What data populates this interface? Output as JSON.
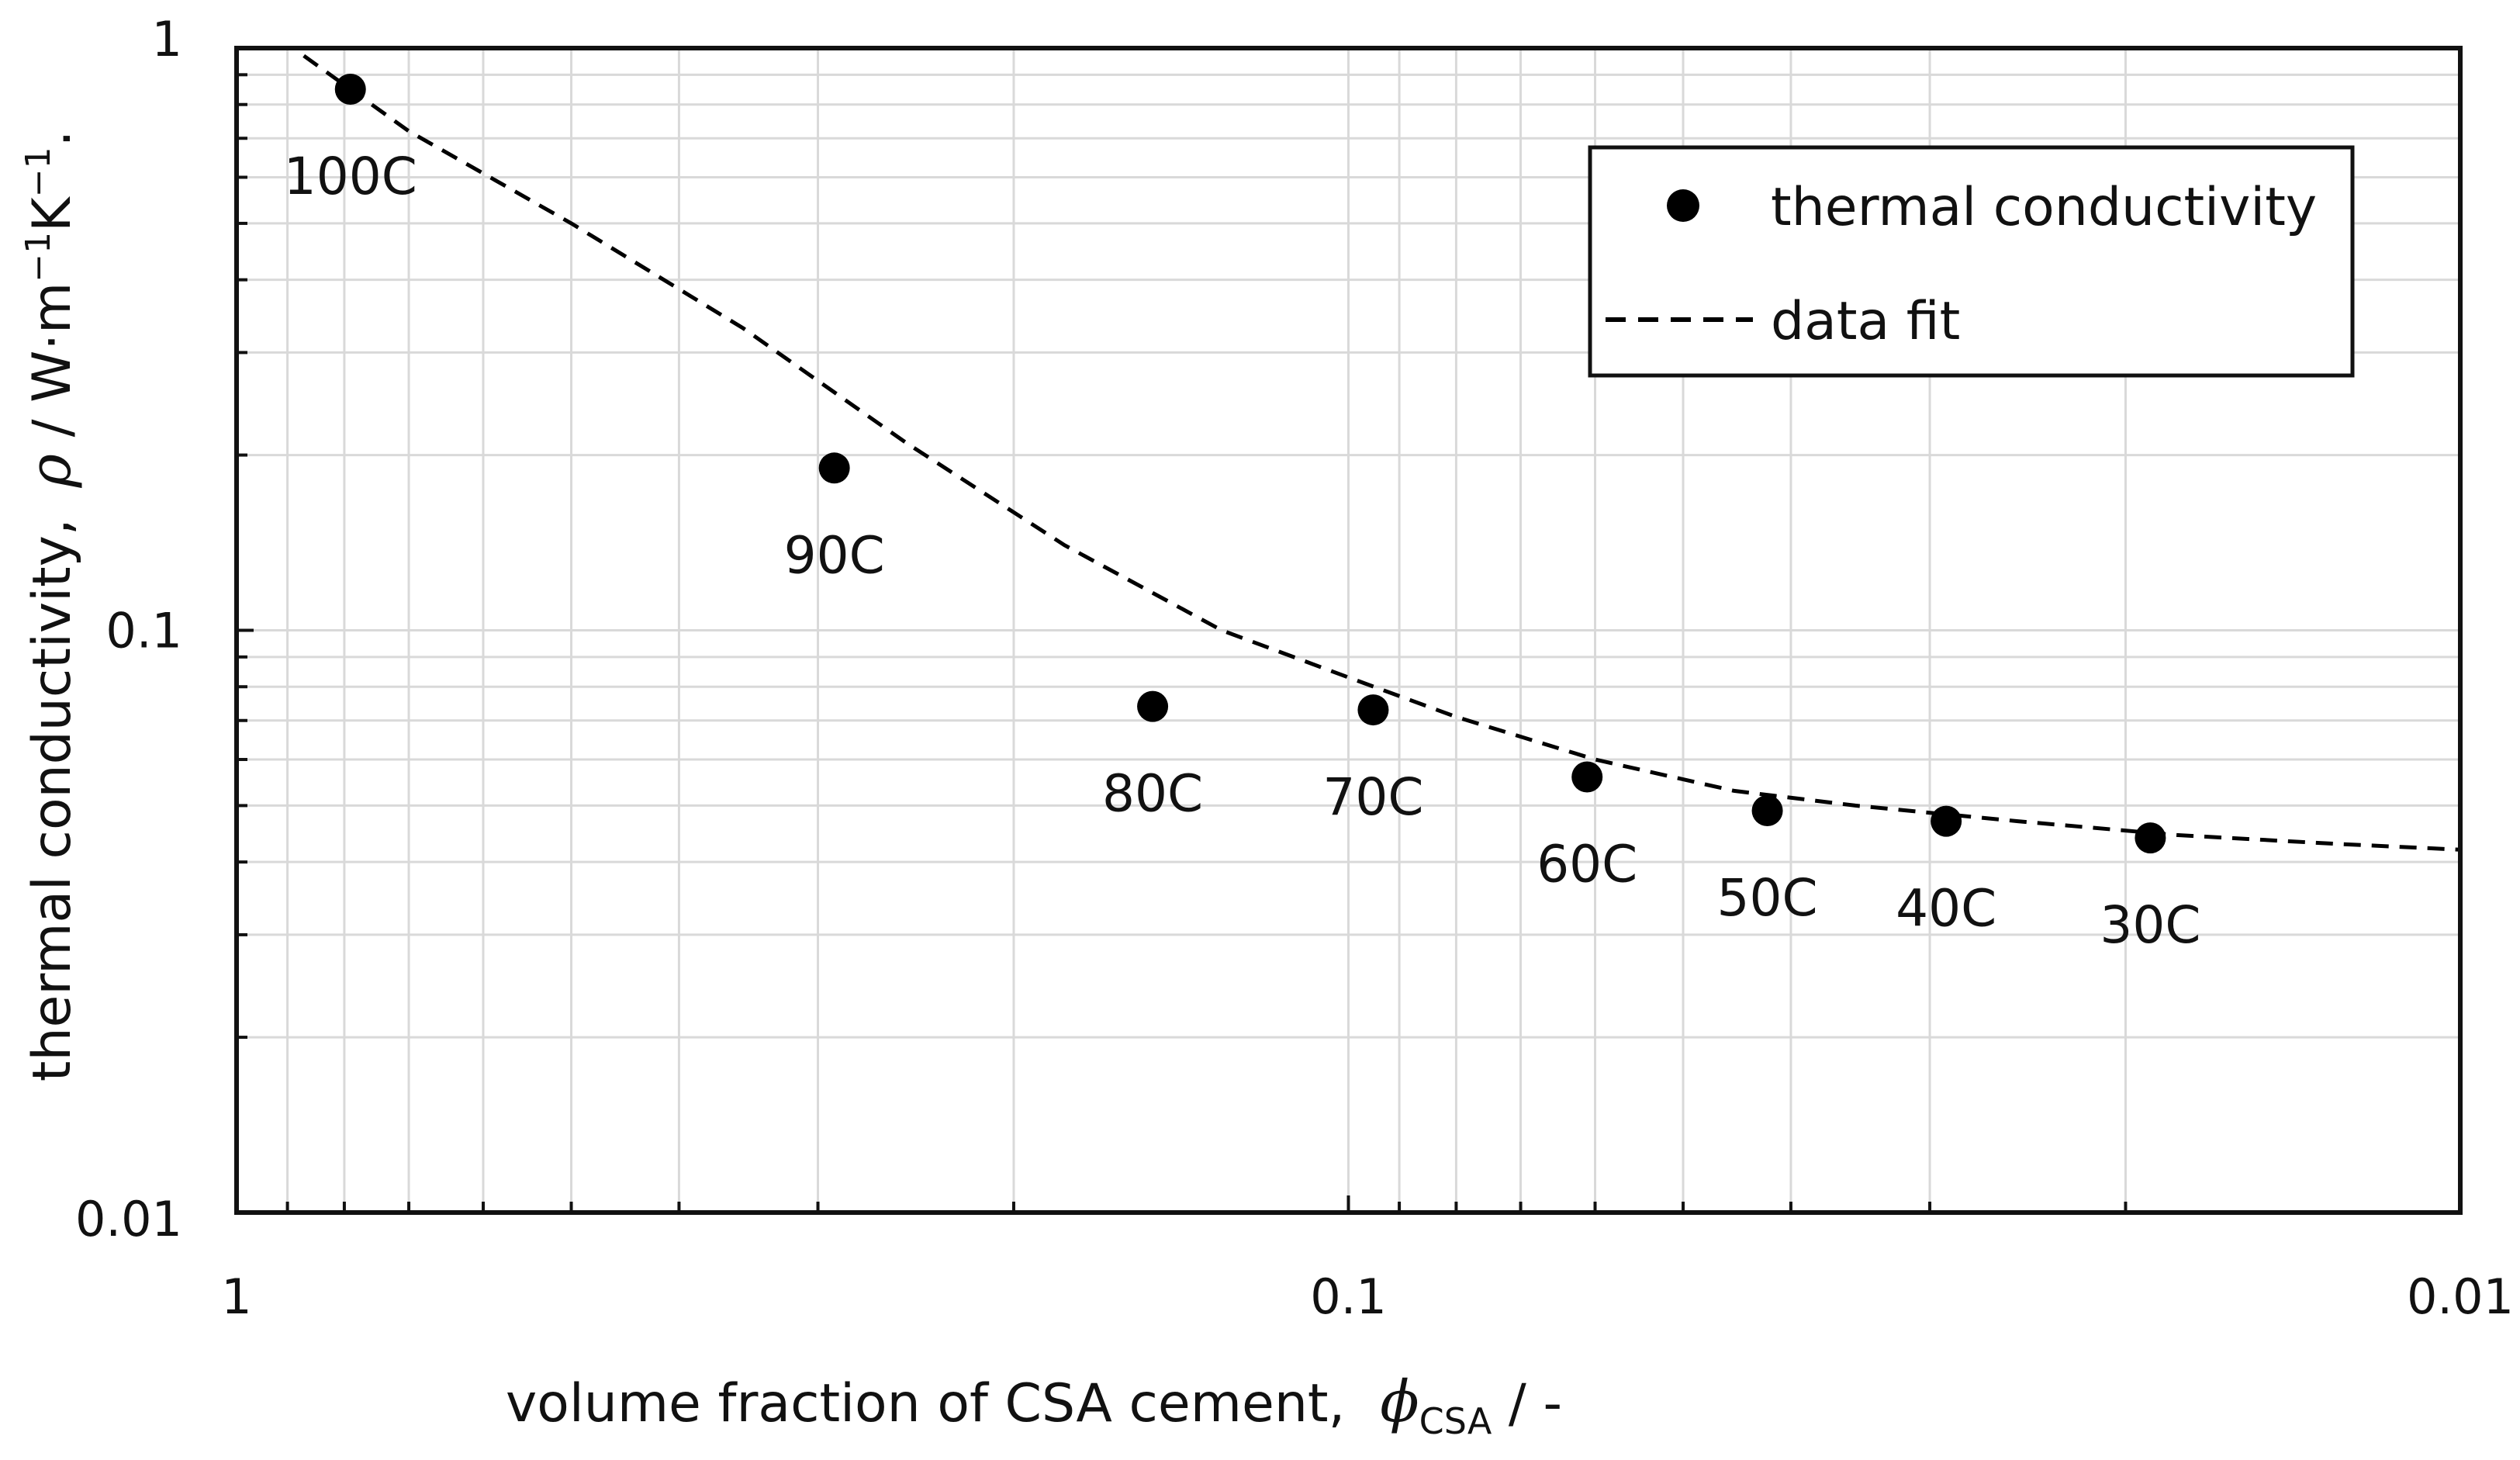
{
  "chart_data": {
    "type": "scatter",
    "title": "",
    "xlabel": "volume fraction of CSA cement,",
    "xlabel_symbol": "ϕ",
    "xlabel_subscript": "CSA",
    "xlabel_unit": " / -",
    "ylabel": "thermal conductivity,",
    "ylabel_symbol": "ρ",
    "ylabel_unit_prefix": " / W·m",
    "ylabel_unit_exp1": "−1",
    "ylabel_unit_mid": "K",
    "ylabel_unit_exp2": "−1",
    "ylabel_unit_suffix": ".",
    "x_scale": "log",
    "y_scale": "log",
    "x_reversed": true,
    "xlim": [
      1,
      0.01
    ],
    "ylim": [
      0.01,
      1
    ],
    "grid": true,
    "x_ticks": [
      {
        "value": 1,
        "label": "1"
      },
      {
        "value": 0.1,
        "label": "0.1"
      },
      {
        "value": 0.01,
        "label": "0.01"
      }
    ],
    "y_ticks": [
      {
        "value": 0.01,
        "label": "0.01"
      },
      {
        "value": 0.1,
        "label": "0.1"
      },
      {
        "value": 1,
        "label": "1"
      }
    ],
    "legend": {
      "location": "top-right",
      "entries": [
        {
          "label": "thermal conductivity",
          "marker": "circle"
        },
        {
          "label": "data fit",
          "marker": "dashed-line"
        }
      ]
    },
    "series": [
      {
        "name": "thermal conductivity",
        "kind": "markers",
        "color": "#000000",
        "points": [
          {
            "x": 0.79,
            "y": 0.85,
            "label": "100C"
          },
          {
            "x": 0.29,
            "y": 0.19,
            "label": "90C"
          },
          {
            "x": 0.15,
            "y": 0.074,
            "label": "80C"
          },
          {
            "x": 0.095,
            "y": 0.073,
            "label": "70C"
          },
          {
            "x": 0.061,
            "y": 0.056,
            "label": "60C"
          },
          {
            "x": 0.042,
            "y": 0.049,
            "label": "50C"
          },
          {
            "x": 0.029,
            "y": 0.047,
            "label": "40C"
          },
          {
            "x": 0.019,
            "y": 0.044,
            "label": "30C"
          }
        ]
      },
      {
        "name": "data fit",
        "kind": "dashed-line",
        "color": "#000000",
        "x": [
          0.87,
          0.7,
          0.5,
          0.35,
          0.25,
          0.18,
          0.13,
          0.1,
          0.08,
          0.06,
          0.045,
          0.035,
          0.025,
          0.018,
          0.013,
          0.01
        ],
        "y": [
          0.97,
          0.72,
          0.5,
          0.33,
          0.21,
          0.14,
          0.1,
          0.083,
          0.071,
          0.06,
          0.053,
          0.05,
          0.047,
          0.0445,
          0.043,
          0.042
        ]
      }
    ]
  }
}
